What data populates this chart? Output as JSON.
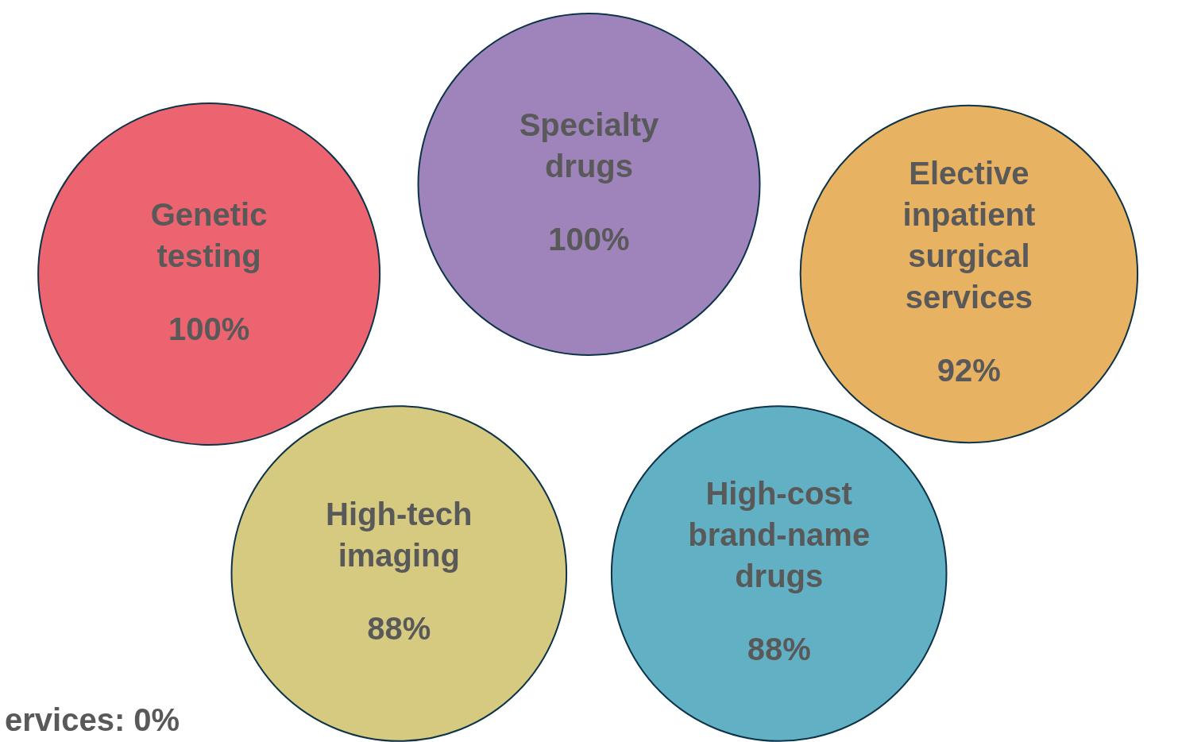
{
  "chart_data": {
    "type": "other",
    "categories": [
      "Genetic testing",
      "Specialty drugs",
      "Elective inpatient surgical services",
      "High-tech imaging",
      "High-cost brand-name drugs"
    ],
    "values": [
      100,
      100,
      92,
      88,
      88
    ],
    "value_labels": [
      "100%",
      "100%",
      "92%",
      "88%",
      "88%"
    ],
    "colors": [
      "#ec6470",
      "#9e84bb",
      "#e8b263",
      "#d6ca80",
      "#62b0c4"
    ],
    "annotations": [
      "ervices: 0%"
    ]
  }
}
